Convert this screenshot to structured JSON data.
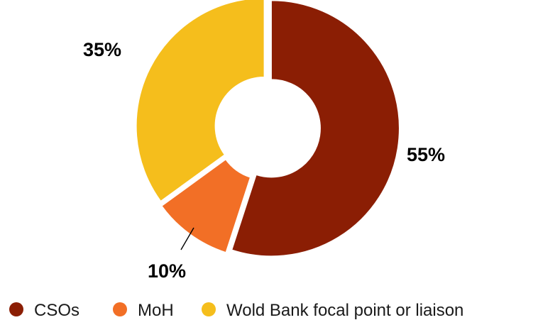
{
  "chart_data": {
    "type": "pie",
    "variant": "donut",
    "categories": [
      "CSOs",
      "MoH",
      "Wold Bank focal point or liaison"
    ],
    "values": [
      55,
      10,
      35
    ],
    "labels": [
      "55%",
      "10%",
      "35%"
    ],
    "colors": [
      "#8B1E04",
      "#F26F26",
      "#F5BE1C"
    ],
    "legend_position": "bottom",
    "start": "top, clockwise"
  }
}
